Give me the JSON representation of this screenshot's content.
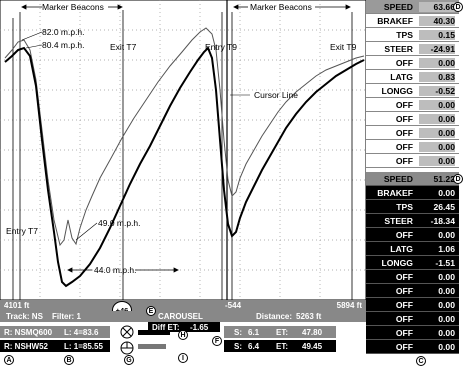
{
  "plot": {
    "annotations": {
      "marker_beacons_left": "Marker Beacons",
      "marker_beacons_right": "Marker Beacons",
      "speed_820": "82.0 m.p.h.",
      "speed_804": "80.4 m.p.h.",
      "exit_t7": "Exit T7",
      "entry_t9": "Entry T9",
      "exit_t9": "Exit T9",
      "cursor_line": "Cursor Line",
      "speed_490": "49.0 m.p.h.",
      "entry_t7": "Entry T7",
      "speed_440": "44.0 m.p.h."
    }
  },
  "status": {
    "start_distance": "4101 ft",
    "cursor_offset": "+46",
    "minus_offset": "-544",
    "end_distance": "5894 ft",
    "track_info": "Track: NS",
    "filter_info": "Filter: 1",
    "carousel": "CAROUSEL",
    "diff_et_label": "Diff ET:",
    "diff_et_value": "-1.65",
    "distance_label": "Distance:",
    "distance_value": "5263 ft",
    "run1_name": "R: NSMQ600",
    "run1_lap": "L: 4=83.6",
    "run2_name": "R: NSHW52",
    "run2_lap": "L: 1=85.55",
    "s1_label": "S:",
    "s1_value": "6.1",
    "et1_label": "ET:",
    "et1_value": "47.80",
    "s2_label": "S:",
    "s2_value": "6.4",
    "et2_label": "ET:",
    "et2_value": "49.45"
  },
  "callouts": {
    "a": "A",
    "b": "B",
    "c": "C",
    "d": "D",
    "e": "E",
    "f": "F",
    "g": "G",
    "h": "H",
    "i": "I"
  },
  "channels_top": [
    {
      "name": "SPEED",
      "value": "63.66"
    },
    {
      "name": "BRAKEF",
      "value": "40.30"
    },
    {
      "name": "TPS",
      "value": "0.15"
    },
    {
      "name": "STEER",
      "value": "-24.91"
    },
    {
      "name": "OFF",
      "value": "0.00"
    },
    {
      "name": "LATG",
      "value": "0.83"
    },
    {
      "name": "LONGG",
      "value": "-0.52"
    },
    {
      "name": "OFF",
      "value": "0.00"
    },
    {
      "name": "OFF",
      "value": "0.00"
    },
    {
      "name": "OFF",
      "value": "0.00"
    },
    {
      "name": "OFF",
      "value": "0.00"
    },
    {
      "name": "OFF",
      "value": "0.00"
    }
  ],
  "channels_bottom": [
    {
      "name": "SPEED",
      "value": "51.22"
    },
    {
      "name": "BRAKEF",
      "value": "0.00"
    },
    {
      "name": "TPS",
      "value": "26.45"
    },
    {
      "name": "STEER",
      "value": "-18.34"
    },
    {
      "name": "OFF",
      "value": "0.00"
    },
    {
      "name": "LATG",
      "value": "1.06"
    },
    {
      "name": "LONGG",
      "value": "-1.51"
    },
    {
      "name": "OFF",
      "value": "0.00"
    },
    {
      "name": "OFF",
      "value": "0.00"
    },
    {
      "name": "OFF",
      "value": "0.00"
    },
    {
      "name": "OFF",
      "value": "0.00"
    },
    {
      "name": "OFF",
      "value": "0.00"
    },
    {
      "name": "OFF",
      "value": "0.00"
    }
  ],
  "colors": {
    "trace_current": "#000000",
    "trace_reference": "#555555",
    "grid": "#999999",
    "dark_panel": "#000000",
    "header_grey": "#9a9a9a"
  }
}
